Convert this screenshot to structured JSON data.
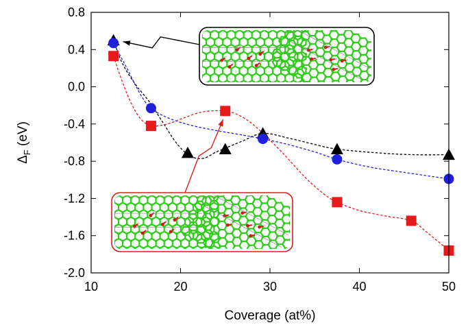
{
  "chart_data": {
    "type": "scatter",
    "xlabel": "Coverage (at%)",
    "ylabel": "Δ",
    "ylabel_sub": "F",
    "ylabel_unit": " (eV)",
    "xlim": [
      10,
      50
    ],
    "ylim": [
      -2.0,
      0.8
    ],
    "xticks": [
      "10",
      "20",
      "30",
      "40",
      "50"
    ],
    "xtick_values": [
      10,
      20,
      30,
      40,
      50
    ],
    "yticks": [
      "0.8",
      "0.4",
      "0.0",
      "-0.4",
      "-0.8",
      "-1.2",
      "-1.6",
      "-2.0"
    ],
    "ytick_values": [
      0.8,
      0.4,
      0.0,
      -0.4,
      -0.8,
      -1.2,
      -1.6,
      -2.0
    ],
    "grid": false,
    "series": [
      {
        "marker": "triangle",
        "color": "#000000",
        "line_color": "#000000",
        "x": [
          12.5,
          20.8,
          25.0,
          29.2,
          37.5,
          50.0
        ],
        "y": [
          0.5,
          -0.71,
          -0.67,
          -0.5,
          -0.67,
          -0.73
        ],
        "curve": [
          [
            12.5,
            0.5
          ],
          [
            13.5,
            0.25
          ],
          [
            15.0,
            0.02
          ],
          [
            16.5,
            -0.16
          ],
          [
            18.0,
            -0.38
          ],
          [
            19.5,
            -0.6
          ],
          [
            21.0,
            -0.74
          ],
          [
            22.5,
            -0.77
          ],
          [
            24.0,
            -0.7
          ],
          [
            25.5,
            -0.64
          ],
          [
            27.0,
            -0.58
          ],
          [
            29.2,
            -0.5
          ],
          [
            32.0,
            -0.55
          ],
          [
            35.0,
            -0.62
          ],
          [
            37.5,
            -0.67
          ],
          [
            42.0,
            -0.71
          ],
          [
            46.0,
            -0.73
          ],
          [
            50.0,
            -0.73
          ]
        ]
      },
      {
        "marker": "circle",
        "color": "#1f1fdd",
        "line_color": "#1f1fdd",
        "x": [
          12.5,
          16.7,
          29.2,
          37.5,
          50.0
        ],
        "y": [
          0.47,
          -0.23,
          -0.56,
          -0.78,
          -0.99
        ],
        "curve": [
          [
            12.5,
            0.47
          ],
          [
            14.0,
            0.2
          ],
          [
            15.5,
            -0.08
          ],
          [
            16.7,
            -0.23
          ],
          [
            18.5,
            -0.33
          ],
          [
            21.0,
            -0.41
          ],
          [
            24.0,
            -0.47
          ],
          [
            27.0,
            -0.52
          ],
          [
            29.2,
            -0.56
          ],
          [
            32.0,
            -0.62
          ],
          [
            35.0,
            -0.7
          ],
          [
            37.5,
            -0.78
          ],
          [
            41.0,
            -0.86
          ],
          [
            45.0,
            -0.92
          ],
          [
            50.0,
            -0.99
          ]
        ]
      },
      {
        "marker": "square",
        "color": "#e51b1b",
        "line_color": "#e51b1b",
        "x": [
          12.5,
          16.7,
          25.0,
          37.5,
          45.8,
          50.0
        ],
        "y": [
          0.33,
          -0.42,
          -0.26,
          -1.24,
          -1.44,
          -1.76
        ],
        "curve": [
          [
            12.5,
            0.33
          ],
          [
            13.5,
            0.05
          ],
          [
            14.5,
            -0.18
          ],
          [
            15.5,
            -0.34
          ],
          [
            16.7,
            -0.42
          ],
          [
            18.5,
            -0.4
          ],
          [
            20.5,
            -0.33
          ],
          [
            22.5,
            -0.27
          ],
          [
            25.0,
            -0.26
          ],
          [
            27.0,
            -0.33
          ],
          [
            29.0,
            -0.48
          ],
          [
            31.5,
            -0.72
          ],
          [
            34.0,
            -0.98
          ],
          [
            36.0,
            -1.15
          ],
          [
            37.5,
            -1.24
          ],
          [
            40.0,
            -1.33
          ],
          [
            43.0,
            -1.39
          ],
          [
            45.8,
            -1.44
          ],
          [
            47.5,
            -1.56
          ],
          [
            50.0,
            -1.76
          ]
        ]
      }
    ],
    "insets": [
      {
        "border_color": "#000000",
        "points_to": [
          12.5,
          0.5
        ],
        "panels": 2
      },
      {
        "border_color": "#e51b1b",
        "points_to": [
          25.0,
          -0.26
        ],
        "panels": 2
      }
    ]
  },
  "colors": {
    "carbon": "#2fcc1a",
    "oxygen": "#d01818",
    "hydrogen": "#d8d8d8"
  }
}
